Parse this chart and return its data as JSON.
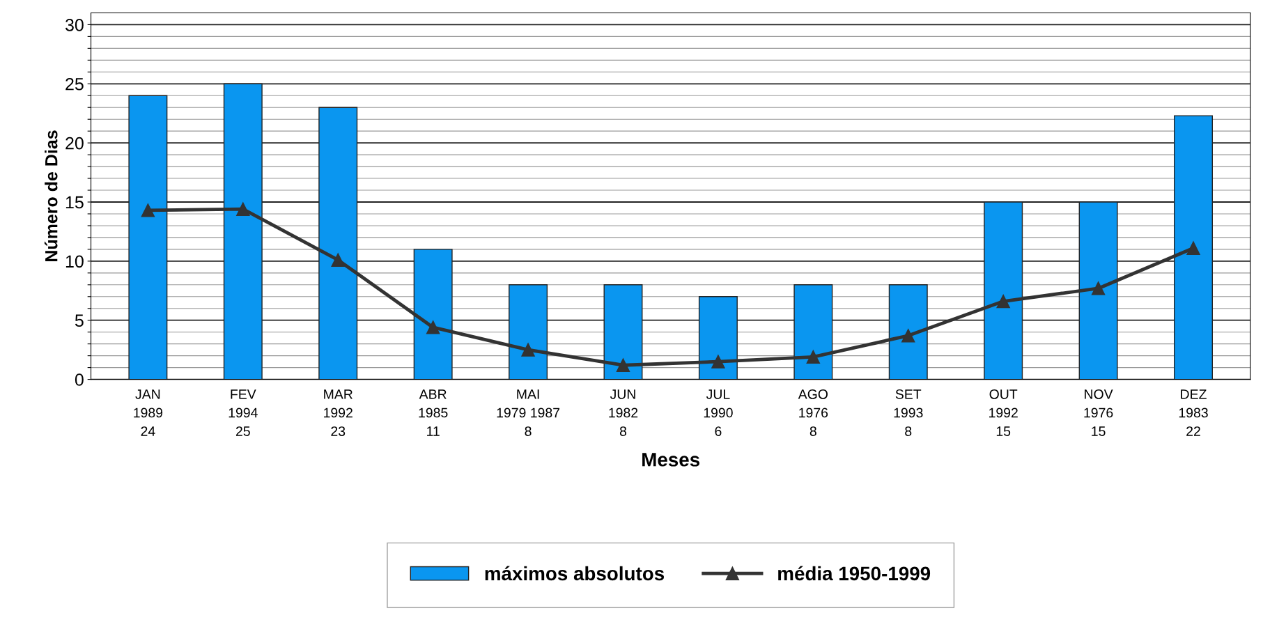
{
  "chart_data": {
    "type": "bar",
    "xlabel": "Meses",
    "ylabel": "Número de Dias",
    "categories": [
      "JAN\n1989\n24",
      "FEV\n1994\n25",
      "MAR\n1992\n23",
      "ABR\n1985\n11",
      "MAI\n1979 1987\n8",
      "JUN\n1982\n8",
      "JUL\n1990\n6",
      "AGO\n1976\n8",
      "SET\n1993\n8",
      "OUT\n1992\n15",
      "NOV\n1976\n15",
      "DEZ\n1983\n22"
    ],
    "series": [
      {
        "name": "máximos absolutos",
        "color": "#0a96f0",
        "values": [
          24,
          25,
          23,
          11,
          8,
          8,
          7,
          8,
          8,
          15,
          15,
          22.3
        ]
      },
      {
        "name": "média 1950-1999",
        "type": "line",
        "color": "#333333",
        "marker": "triangle",
        "values": [
          14.3,
          14.4,
          10.1,
          4.4,
          2.5,
          1.2,
          1.5,
          1.9,
          3.7,
          6.6,
          7.7,
          11.1
        ]
      }
    ],
    "ylim": [
      0,
      31
    ],
    "yticks": [
      0,
      {
        "value": 1,
        "label": null
      },
      {
        "value": 2,
        "label": null
      },
      {
        "value": 3,
        "label": null
      },
      {
        "value": 4,
        "label": null
      },
      5,
      {
        "value": 6,
        "label": null
      },
      {
        "value": 7,
        "label": null
      },
      {
        "value": 8,
        "label": null
      },
      {
        "value": 9,
        "label": null
      },
      10,
      {
        "value": 11,
        "label": null
      },
      {
        "value": 12,
        "label": null
      },
      {
        "value": 13,
        "label": null
      },
      {
        "value": 14,
        "label": null
      },
      15,
      {
        "value": 16,
        "label": null
      },
      {
        "value": 17,
        "label": null
      },
      {
        "value": 18,
        "label": null
      },
      {
        "value": 19,
        "label": null
      },
      20,
      {
        "value": 21,
        "label": null
      },
      {
        "value": 22,
        "label": null
      },
      {
        "value": 23,
        "label": null
      },
      {
        "value": 24,
        "label": null
      },
      25,
      {
        "value": 26,
        "label": null
      },
      {
        "value": 27,
        "label": null
      },
      {
        "value": 28,
        "label": null
      },
      {
        "value": 29,
        "label": null
      },
      30
    ],
    "grid": "y",
    "legend": "bottom"
  }
}
